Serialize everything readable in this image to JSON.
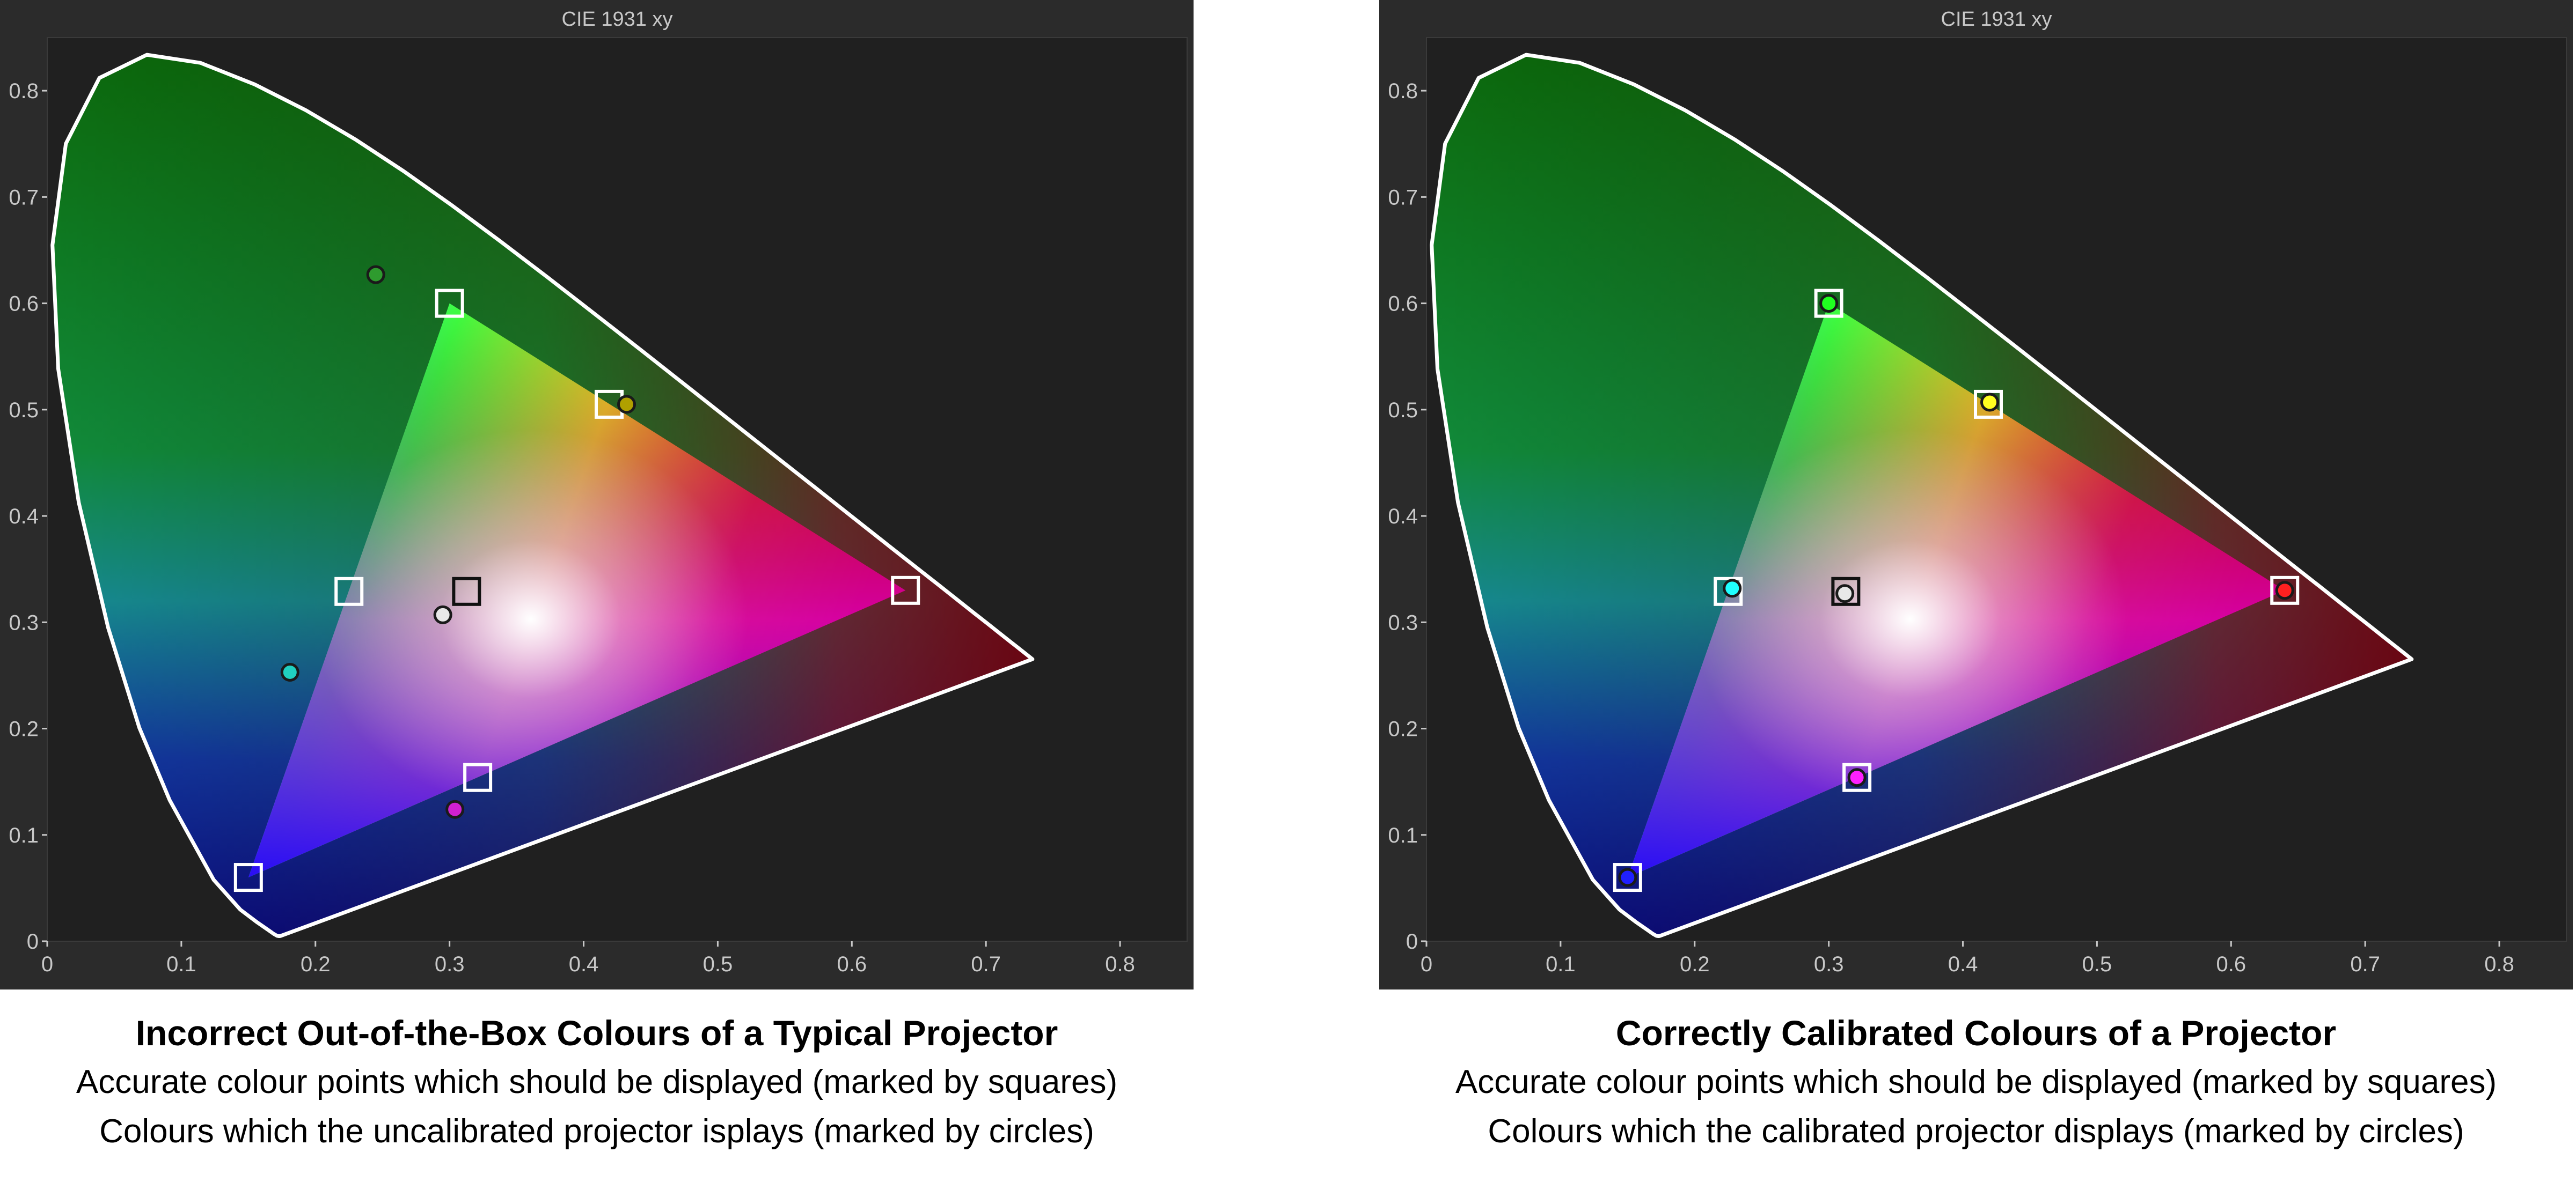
{
  "colors": {
    "frame": "#2b2b2b",
    "plot_bg": "#202020",
    "text": "#c8c8c8",
    "locus": "#ffffff"
  },
  "panels": [
    {
      "caption": {
        "title": "Incorrect Out-of-the-Box Colours of a Typical Projector",
        "line1": "Accurate colour points which should be displayed (marked by squares)",
        "line2": "Colours which the uncalibrated projector isplays (marked by circles)"
      }
    },
    {
      "caption": {
        "title": "Correctly Calibrated Colours of a Projector",
        "line1": "Accurate colour points which should be displayed (marked by squares)",
        "line2": "Colours which the calibrated projector displays (marked by circles)"
      }
    }
  ],
  "chart_data": [
    {
      "type": "scatter",
      "title": "CIE 1931 xy",
      "xlim": [
        0,
        0.85
      ],
      "ylim": [
        0,
        0.85
      ],
      "xticks": [
        "0",
        "0.1",
        "0.2",
        "0.3",
        "0.4",
        "0.5",
        "0.6",
        "0.7",
        "0.8"
      ],
      "yticks": [
        "0",
        "0.1",
        "0.2",
        "0.3",
        "0.4",
        "0.5",
        "0.6",
        "0.7",
        "0.8"
      ],
      "grid": false,
      "gamut_triangle": [
        [
          0.64,
          0.33
        ],
        [
          0.3,
          0.6
        ],
        [
          0.15,
          0.06
        ]
      ],
      "series": [
        {
          "marker": "square",
          "points": [
            {
              "x": 0.64,
              "y": 0.33,
              "color": "#ff2020"
            },
            {
              "x": 0.3,
              "y": 0.6,
              "color": "#20ff20"
            },
            {
              "x": 0.15,
              "y": 0.06,
              "color": "#2020ff"
            },
            {
              "x": 0.225,
              "y": 0.329,
              "color": "#20ffff"
            },
            {
              "x": 0.321,
              "y": 0.154,
              "color": "#ff20ff"
            },
            {
              "x": 0.419,
              "y": 0.505,
              "color": "#ffff20"
            },
            {
              "x": 0.3127,
              "y": 0.329,
              "color": "#ffffff"
            }
          ]
        },
        {
          "marker": "circle",
          "points": [
            {
              "x": 0.245,
              "y": 0.627,
              "color": "#2e9b2e"
            },
            {
              "x": 0.432,
              "y": 0.505,
              "color": "#b0a000"
            },
            {
              "x": 0.295,
              "y": 0.307,
              "color": "#e8e8e8"
            },
            {
              "x": 0.181,
              "y": 0.253,
              "color": "#20d0c0"
            },
            {
              "x": 0.304,
              "y": 0.124,
              "color": "#d020d0"
            }
          ]
        }
      ]
    },
    {
      "type": "scatter",
      "title": "CIE 1931 xy",
      "xlim": [
        0,
        0.85
      ],
      "ylim": [
        0,
        0.85
      ],
      "xticks": [
        "0",
        "0.1",
        "0.2",
        "0.3",
        "0.4",
        "0.5",
        "0.6",
        "0.7",
        "0.8"
      ],
      "yticks": [
        "0",
        "0.1",
        "0.2",
        "0.3",
        "0.4",
        "0.5",
        "0.6",
        "0.7",
        "0.8"
      ],
      "grid": false,
      "gamut_triangle": [
        [
          0.64,
          0.33
        ],
        [
          0.3,
          0.6
        ],
        [
          0.15,
          0.06
        ]
      ],
      "series": [
        {
          "marker": "square",
          "points": [
            {
              "x": 0.64,
              "y": 0.33,
              "color": "#ff2020"
            },
            {
              "x": 0.3,
              "y": 0.6,
              "color": "#20ff20"
            },
            {
              "x": 0.15,
              "y": 0.06,
              "color": "#2020ff"
            },
            {
              "x": 0.225,
              "y": 0.329,
              "color": "#20ffff"
            },
            {
              "x": 0.321,
              "y": 0.154,
              "color": "#ff20ff"
            },
            {
              "x": 0.419,
              "y": 0.505,
              "color": "#ffff20"
            },
            {
              "x": 0.3127,
              "y": 0.329,
              "color": "#ffffff"
            }
          ]
        },
        {
          "marker": "circle",
          "points": [
            {
              "x": 0.64,
              "y": 0.33,
              "color": "#ff2020"
            },
            {
              "x": 0.3,
              "y": 0.6,
              "color": "#20ff20"
            },
            {
              "x": 0.15,
              "y": 0.06,
              "color": "#2020ff"
            },
            {
              "x": 0.228,
              "y": 0.332,
              "color": "#20ffff"
            },
            {
              "x": 0.321,
              "y": 0.154,
              "color": "#ff20ff"
            },
            {
              "x": 0.42,
              "y": 0.507,
              "color": "#ffff20"
            },
            {
              "x": 0.312,
              "y": 0.327,
              "color": "#e8e8e8"
            }
          ]
        }
      ]
    }
  ]
}
